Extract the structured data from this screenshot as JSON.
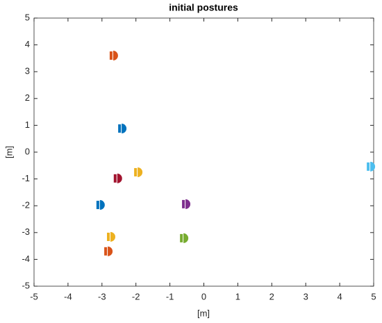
{
  "chart_data": {
    "type": "scatter",
    "title": "initial postures",
    "xlabel": "[m]",
    "ylabel": "[m]",
    "x": [
      -2.65,
      -2.4,
      -1.93,
      -2.53,
      -3.04,
      -0.52,
      -2.73,
      -0.58,
      -2.81,
      4.92
    ],
    "y": [
      3.6,
      0.88,
      -0.75,
      -0.98,
      -1.97,
      -1.94,
      -3.16,
      -3.21,
      -3.7,
      -0.54
    ],
    "colors": [
      "#d95319",
      "#0072bd",
      "#edb120",
      "#a2142f",
      "#0072bd",
      "#7e2f8e",
      "#edb120",
      "#77ac30",
      "#d95319",
      "#4dbeee"
    ],
    "xlim": [
      -5,
      5
    ],
    "ylim": [
      -5,
      5
    ],
    "xticks": [
      -5,
      -4,
      -3,
      -2,
      -1,
      0,
      1,
      2,
      3,
      4,
      5
    ],
    "yticks": [
      -5,
      -4,
      -3,
      -2,
      -1,
      0,
      1,
      2,
      3,
      4,
      5
    ]
  }
}
